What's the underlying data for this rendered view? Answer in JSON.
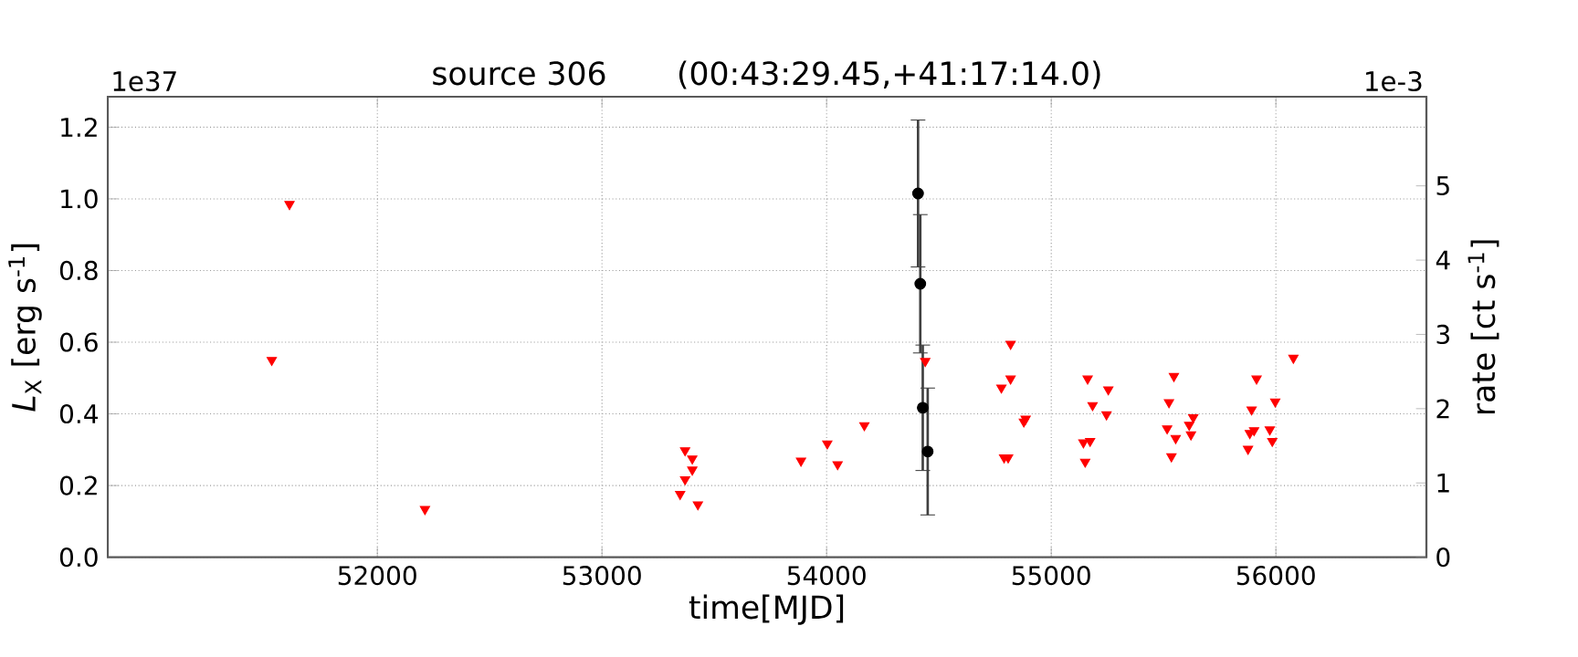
{
  "chart_data": {
    "type": "scatter",
    "title": "source 306",
    "subtitle": "(00:43:29.45,+41:17:14.0)",
    "xlabel": "time[MJD]",
    "ylabel": "*L*$_{X}$ [erg s$^{-1}$]",
    "y2label": "rate [ct s$^{-1}$]",
    "annotations": [
      "1e37",
      "1e-3"
    ],
    "series": [
      {
        "color": "#ff0000",
        "marker": "triangle",
        "x": [
          51530,
          51609,
          52212,
          53370,
          53402,
          53402,
          53370,
          53348,
          53427,
          53886,
          54003,
          54049,
          54168,
          54439,
          54819,
          54819,
          54778,
          54886,
          54878,
          54790,
          54808,
          55162,
          55254,
          55184,
          55246,
          55143,
          55173,
          55151,
          55546,
          55524,
          55632,
          55614,
          55516,
          55554,
          55622,
          55535,
          55914,
          55892,
          55997,
          55903,
          55884,
          55973,
          55984,
          55876,
          56078
        ],
        "values": [
          0.55,
          0.985,
          0.134,
          0.298,
          0.275,
          0.244,
          0.217,
          0.176,
          0.147,
          0.269,
          0.317,
          0.259,
          0.368,
          0.547,
          0.595,
          0.498,
          0.473,
          0.386,
          0.378,
          0.278,
          0.278,
          0.498,
          0.468,
          0.424,
          0.398,
          0.32,
          0.324,
          0.266,
          0.505,
          0.432,
          0.39,
          0.369,
          0.359,
          0.332,
          0.342,
          0.281,
          0.498,
          0.412,
          0.434,
          0.354,
          0.346,
          0.356,
          0.324,
          0.302,
          0.556
        ]
      },
      {
        "color": "#000000",
        "marker": "circle",
        "x": [
          54407,
          54417,
          54428,
          54450
        ],
        "values": [
          1.015,
          0.763,
          0.417,
          0.295
        ],
        "errors": [
          0.205,
          0.193,
          0.175,
          0.177
        ]
      }
    ],
    "xlim": [
      50800,
      56670
    ],
    "xticks": [
      52000,
      53000,
      54000,
      55000,
      56000
    ],
    "ylim": [
      0,
      1.285
    ],
    "yticks": [
      {
        "value": 0,
        "label": "0.0"
      },
      {
        "value": 0.2,
        "label": "0.2"
      },
      {
        "value": 0.4,
        "label": "0.4"
      },
      {
        "value": 0.6,
        "label": "0.6"
      },
      {
        "value": 0.8,
        "label": "0.8"
      },
      {
        "value": 1.0,
        "label": "1.0"
      },
      {
        "value": 1.2,
        "label": "1.2"
      }
    ],
    "y2lim": [
      0,
      6.2
    ],
    "y2ticks": [
      0,
      1,
      2,
      3,
      4,
      5
    ],
    "grid": true
  }
}
